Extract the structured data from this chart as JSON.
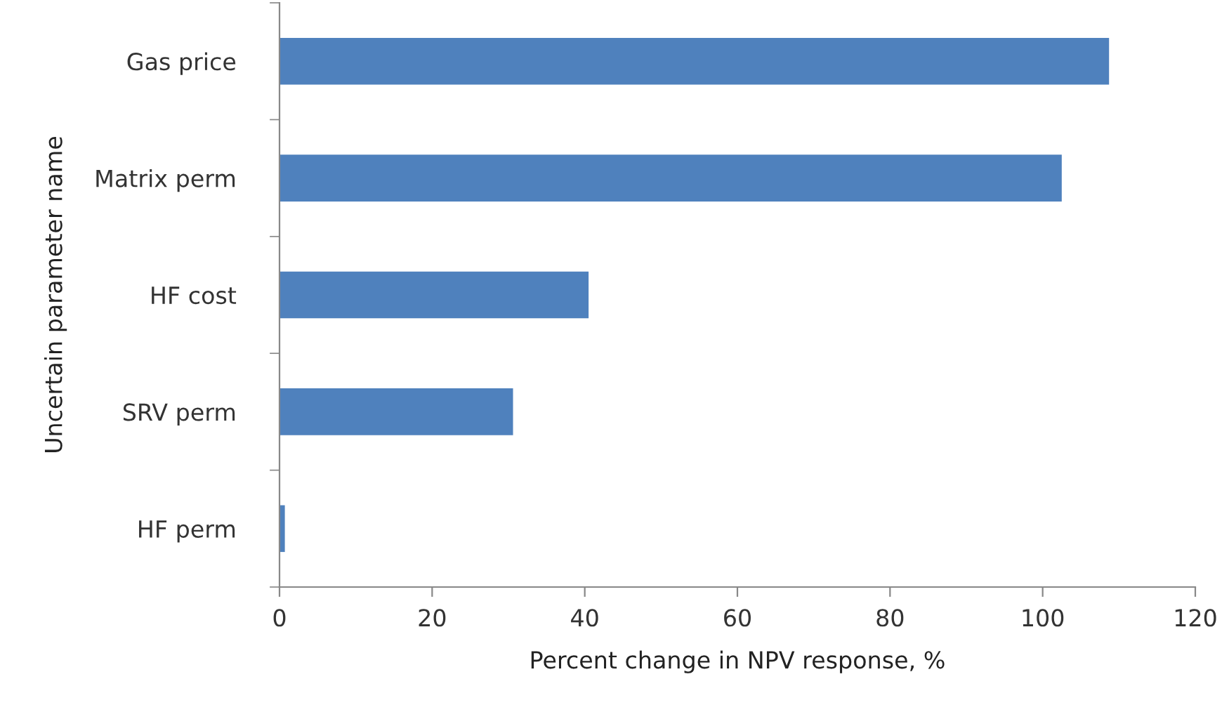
{
  "chart_data": {
    "type": "bar",
    "orientation": "horizontal",
    "ylabel": "Uncertain parameter name",
    "xlabel": "Percent change in NPV response, %",
    "categories": [
      "Gas price",
      "Matrix perm",
      "HF cost",
      "SRV perm",
      "HF perm"
    ],
    "values": [
      108.7,
      102.5,
      40.5,
      30.6,
      0.7
    ],
    "color": "#4f81bd",
    "xlim": [
      0,
      120
    ],
    "xticks": [
      0,
      20,
      40,
      60,
      80,
      100,
      120
    ],
    "grid": false
  }
}
